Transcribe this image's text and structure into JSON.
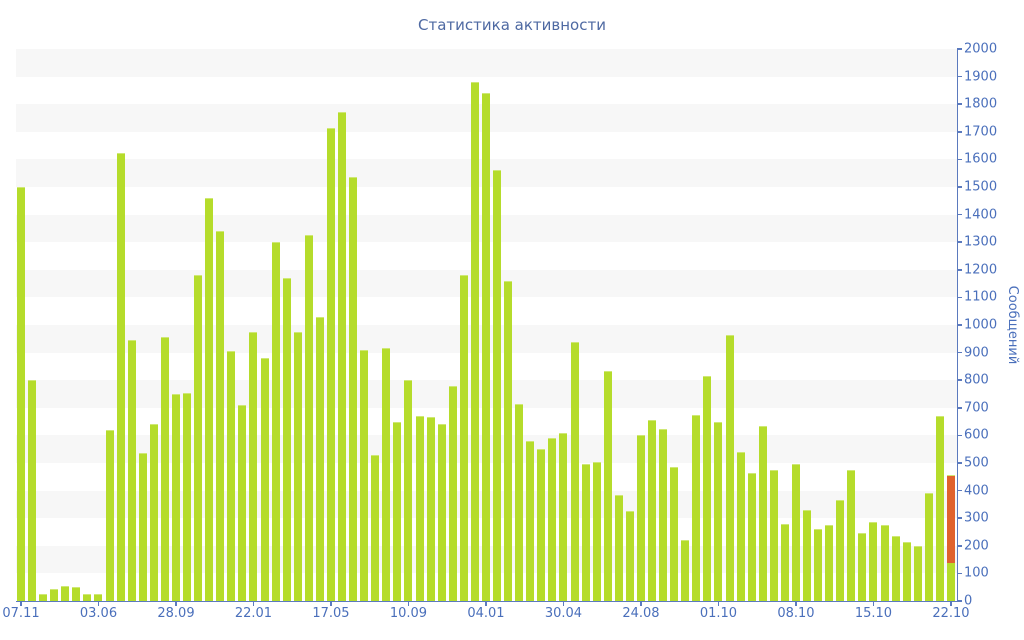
{
  "chart_data": {
    "type": "bar",
    "title": "Статистика активности",
    "ylabel": "Сообщений",
    "xlabel": "",
    "ylim": [
      0,
      2000
    ],
    "ytick_step": 100,
    "y_tick_labels": [
      "0",
      "100",
      "200",
      "300",
      "400",
      "500",
      "600",
      "700",
      "800",
      "900",
      "1000",
      "1100",
      "1200",
      "1300",
      "1400",
      "1500",
      "1600",
      "1700",
      "1800",
      "1900",
      "2000"
    ],
    "y_axis_side": "right",
    "grid": "alternating-horizontal-stripes",
    "legend_position": "none",
    "bar_color": "#b5dc2b",
    "highlight_color": "#e0622d",
    "stripe_color": "#f7f7f7",
    "axis_color": "#5b7abe",
    "tick_label_color": "#4a6fbb",
    "title_color": "#4e69a2",
    "x_tick_labels": [
      "07.11",
      "03.06",
      "28.09",
      "22.01",
      "17.05",
      "10.09",
      "04.01",
      "30.04",
      "24.08",
      "01.10",
      "08.10",
      "15.10",
      "22.10"
    ],
    "x_label_every": 7,
    "values": [
      1500,
      800,
      25,
      45,
      55,
      50,
      25,
      25,
      620,
      1625,
      945,
      535,
      640,
      955,
      750,
      755,
      1180,
      1460,
      1340,
      905,
      710,
      975,
      880,
      1300,
      1170,
      975,
      1325,
      1030,
      1715,
      1770,
      1535,
      910,
      530,
      915,
      650,
      800,
      670,
      665,
      640,
      780,
      1180,
      1880,
      1840,
      1560,
      1160,
      715,
      580,
      550,
      590,
      610,
      940,
      495,
      505,
      835,
      385,
      325,
      600,
      655,
      625,
      485,
      220,
      675,
      815,
      650,
      965,
      540,
      465,
      635,
      475,
      280,
      495,
      330,
      260,
      275,
      365,
      475,
      245,
      285,
      275,
      235,
      215,
      200,
      390,
      670,
      455
    ],
    "last_bar": {
      "x_label": "22.10",
      "green_value": 140,
      "total_value": 455
    }
  }
}
